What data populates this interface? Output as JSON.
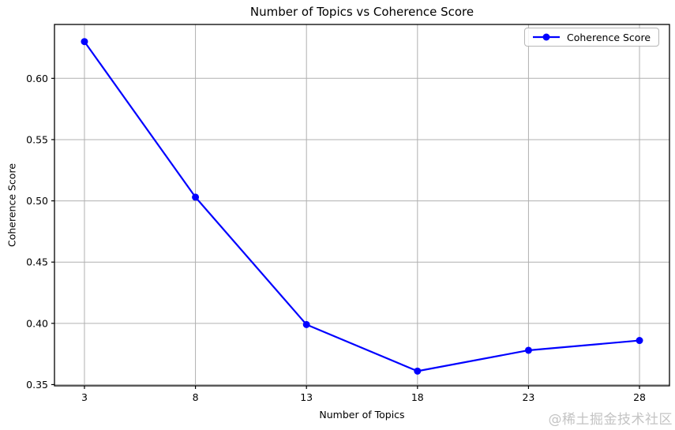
{
  "chart_data": {
    "type": "line",
    "title": "Number of Topics vs Coherence Score",
    "xlabel": "Number of Topics",
    "ylabel": "Coherence Score",
    "legend": {
      "label": "Coherence Score",
      "position": "upper right"
    },
    "x": [
      3,
      8,
      13,
      18,
      23,
      28
    ],
    "series": [
      {
        "name": "Coherence Score",
        "color": "#0000ff",
        "marker": "circle",
        "values": [
          0.63,
          0.503,
          0.399,
          0.361,
          0.378,
          0.386
        ]
      }
    ],
    "xticks": [
      3,
      8,
      13,
      18,
      23,
      28
    ],
    "yticks": [
      0.35,
      0.4,
      0.45,
      0.5,
      0.55,
      0.6
    ],
    "xlim": [
      1.65,
      29.35
    ],
    "ylim": [
      0.349,
      0.644
    ],
    "grid": true,
    "grid_color": "#b0b0b0",
    "spine_color": "#000000",
    "background": "#ffffff"
  },
  "watermark": {
    "text": "@稀土掘金技术社区",
    "color": "#bdbdbd"
  }
}
